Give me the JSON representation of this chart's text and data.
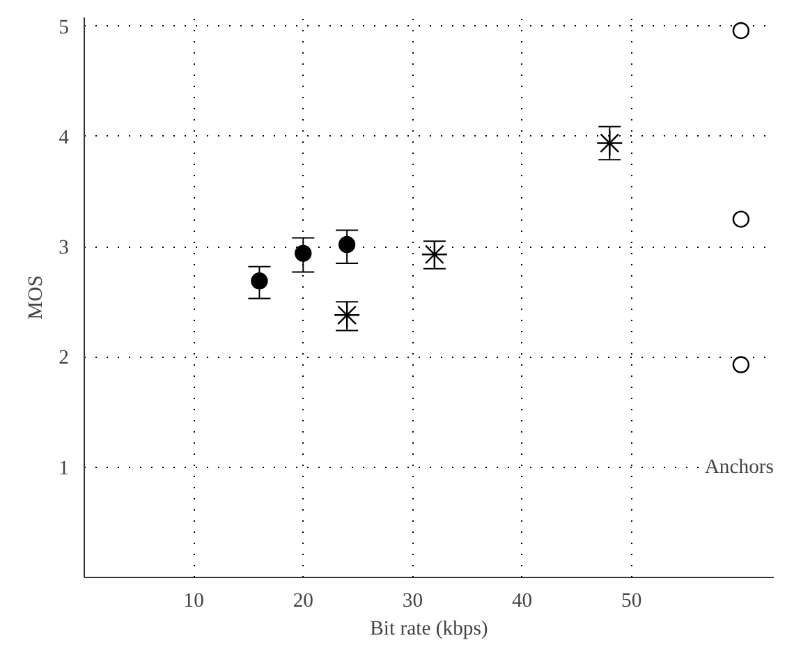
{
  "chart_data": {
    "type": "scatter",
    "xlabel": "Bit rate (kbps)",
    "ylabel": "MOS",
    "xlim": [
      0,
      63
    ],
    "ylim": [
      0,
      5.08
    ],
    "xticks": [
      10,
      20,
      30,
      40,
      50
    ],
    "yticks": [
      1,
      2,
      3,
      4,
      5
    ],
    "grid": true,
    "series": [
      {
        "color": "#000000",
        "marker": "circle",
        "x": [
          16,
          20,
          24
        ],
        "values": [
          2.69,
          2.94,
          3.02
        ],
        "errors": [
          [
            2.53,
            2.82
          ],
          [
            2.77,
            3.08
          ],
          [
            2.85,
            3.15
          ]
        ]
      },
      {
        "color": "#000000",
        "marker": "cross",
        "x": [
          24,
          32,
          48
        ],
        "values": [
          2.38,
          2.93,
          3.94
        ],
        "errors": [
          [
            2.24,
            2.5
          ],
          [
            2.8,
            3.05
          ],
          [
            3.79,
            4.09
          ]
        ]
      },
      {
        "color": "#ffffff",
        "marker": "circle",
        "x": [
          60,
          60,
          60
        ],
        "values": [
          4.96,
          3.25,
          1.93
        ]
      }
    ],
    "annotations": [
      "Anchors"
    ]
  }
}
